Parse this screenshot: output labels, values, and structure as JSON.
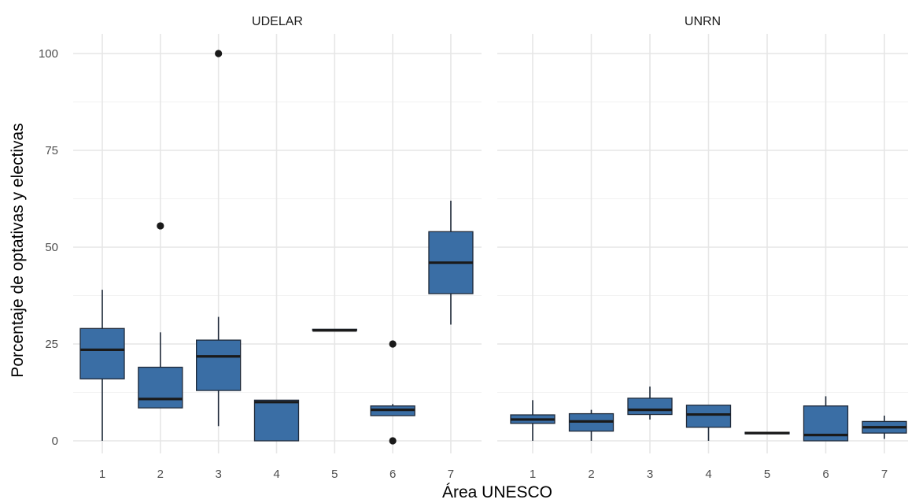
{
  "chart_data": {
    "type": "boxplot",
    "xlabel": "Área UNESCO",
    "ylabel": "Porcentaje de optativas y electivas",
    "ylim": [
      -3,
      105
    ],
    "yticks": [
      0,
      25,
      50,
      75,
      100
    ],
    "categories": [
      "1",
      "2",
      "3",
      "4",
      "5",
      "6",
      "7"
    ],
    "grid": true,
    "colors": {
      "box_fill": "#3a6ea5",
      "box_stroke": "#1f2a3a",
      "outlier": "#1a1a1a"
    },
    "panels": [
      {
        "name": "UDELAR",
        "boxes": [
          {
            "category": "1",
            "min": 0,
            "q1": 16,
            "median": 23.5,
            "q3": 29,
            "max": 39,
            "outliers": []
          },
          {
            "category": "2",
            "min": 8.5,
            "q1": 8.5,
            "median": 10.8,
            "q3": 19,
            "max": 28,
            "outliers": [
              55.5
            ]
          },
          {
            "category": "3",
            "min": 3.8,
            "q1": 13,
            "median": 21.8,
            "q3": 26,
            "max": 32,
            "outliers": [
              100
            ]
          },
          {
            "category": "4",
            "min": 0,
            "q1": 0,
            "median": 10,
            "q3": 10.5,
            "max": 10.5,
            "outliers": []
          },
          {
            "category": "5",
            "min": 28.5,
            "q1": 28.5,
            "median": 28.5,
            "q3": 28.8,
            "max": 28.8,
            "outliers": []
          },
          {
            "category": "6",
            "min": 6.5,
            "q1": 6.5,
            "median": 8,
            "q3": 9,
            "max": 9.5,
            "outliers": [
              25,
              0
            ]
          },
          {
            "category": "7",
            "min": 30,
            "q1": 38,
            "median": 46,
            "q3": 54,
            "max": 62,
            "outliers": []
          }
        ]
      },
      {
        "name": "UNRN",
        "boxes": [
          {
            "category": "1",
            "min": 0,
            "q1": 4.5,
            "median": 5.5,
            "q3": 6.7,
            "max": 10.5,
            "outliers": []
          },
          {
            "category": "2",
            "min": 0,
            "q1": 2.5,
            "median": 5,
            "q3": 7,
            "max": 8,
            "outliers": []
          },
          {
            "category": "3",
            "min": 5.5,
            "q1": 6.8,
            "median": 8,
            "q3": 11,
            "max": 14,
            "outliers": []
          },
          {
            "category": "4",
            "min": 0,
            "q1": 3.5,
            "median": 6.8,
            "q3": 9.2,
            "max": 9.2,
            "outliers": []
          },
          {
            "category": "5",
            "min": 1.8,
            "q1": 1.8,
            "median": 2,
            "q3": 2.2,
            "max": 2.2,
            "outliers": []
          },
          {
            "category": "6",
            "min": 0,
            "q1": 0,
            "median": 1.5,
            "q3": 9,
            "max": 11.5,
            "outliers": []
          },
          {
            "category": "7",
            "min": 0.5,
            "q1": 2,
            "median": 3.5,
            "q3": 5,
            "max": 6.5,
            "outliers": []
          }
        ]
      }
    ]
  }
}
